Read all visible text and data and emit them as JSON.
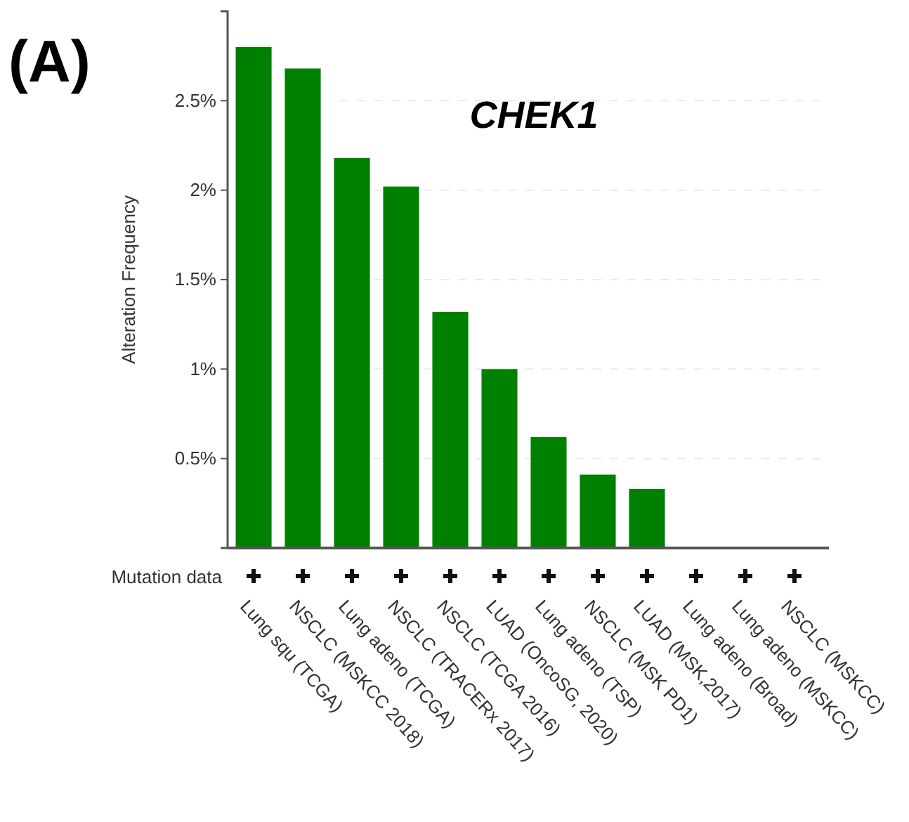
{
  "chart_data": {
    "type": "bar",
    "title": "CHEK1",
    "ylabel": "Alteration Frequency",
    "categories": [
      "Lung squ (TCGA)",
      "NSCLC (MSKCC 2018)",
      "Lung adeno (TCGA)",
      "NSCLC (TRACERx 2017)",
      "NSCLC (TCGA 2016)",
      "LUAD (OncoSG, 2020)",
      "Lung adeno (TSP)",
      "NSCLC (MSK PD1)",
      "LUAD (MSK,2017)",
      "Lung adeno (Broad)",
      "Lung adeno (MSKCC)",
      "NSCLC (MSKCC)"
    ],
    "values": [
      2.8,
      2.68,
      2.18,
      2.02,
      1.32,
      1.0,
      0.62,
      0.41,
      0.33,
      0,
      0,
      0
    ],
    "color": "#008000",
    "ylim": [
      0,
      3
    ],
    "yticks": [
      {
        "value": 0.5,
        "label": "0.5%"
      },
      {
        "value": 1,
        "label": "1%"
      },
      {
        "value": 1.5,
        "label": "1.5%"
      },
      {
        "value": 2,
        "label": "2%"
      },
      {
        "value": 2.5,
        "label": "2.5%"
      }
    ],
    "grid": "y",
    "annotations": [
      "(A)",
      "Mutation data"
    ]
  }
}
